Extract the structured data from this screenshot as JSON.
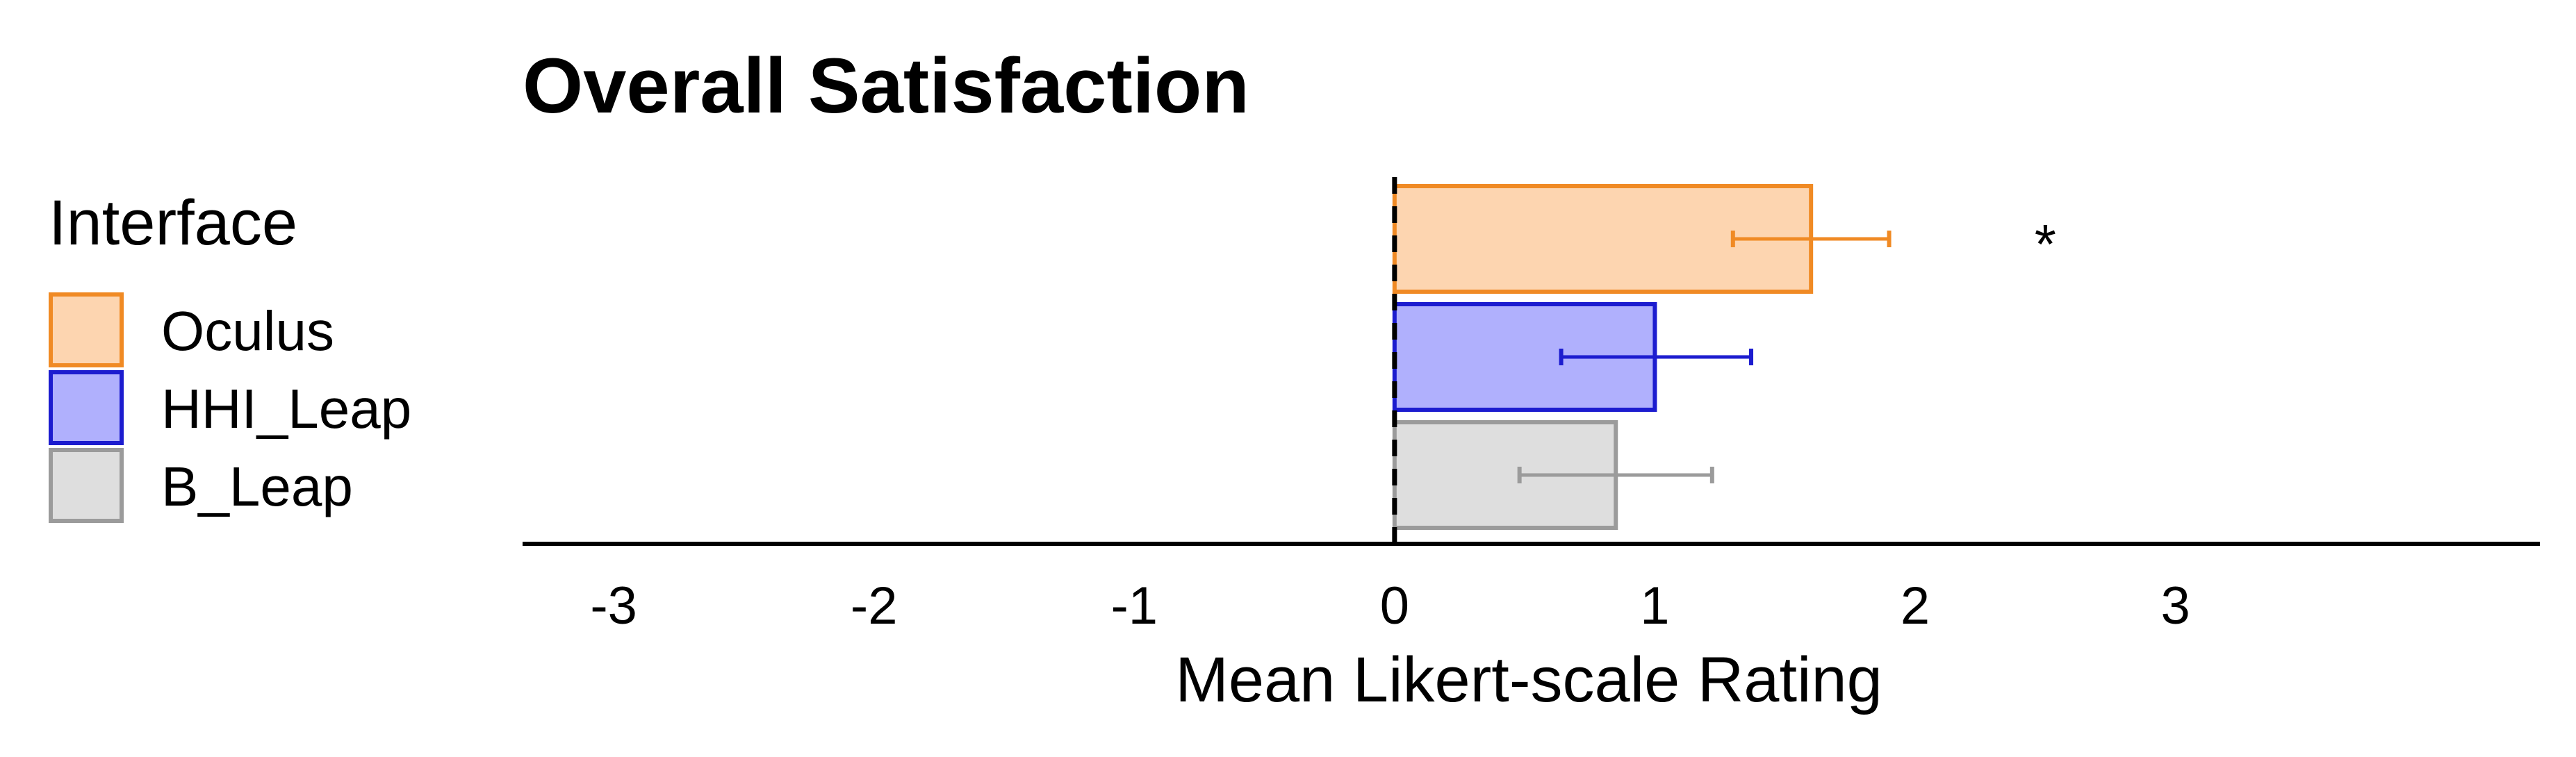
{
  "chart_data": {
    "type": "bar",
    "orientation": "horizontal",
    "title": "Overall Satisfaction",
    "xlabel": "Mean Likert-scale Rating",
    "xlim": [
      -3.35,
      4.4
    ],
    "xticks": [
      "-3",
      "-2",
      "-1",
      "0",
      "1",
      "2",
      "3"
    ],
    "xtick_values": [
      -3,
      -2,
      -1,
      0,
      1,
      2,
      3
    ],
    "legend": {
      "title": "Interface",
      "placement": "left"
    },
    "series": [
      {
        "name": "Oculus",
        "value": 1.6,
        "error_low": 1.3,
        "error_high": 1.9,
        "fill": "#fdd5b0",
        "stroke": "#f08a24",
        "annotation": "*"
      },
      {
        "name": "HHI_Leap",
        "value": 1.0,
        "error_low": 0.64,
        "error_high": 1.37,
        "fill": "#b0b0fd",
        "stroke": "#1c1ccf",
        "annotation": ""
      },
      {
        "name": "B_Leap",
        "value": 0.85,
        "error_low": 0.48,
        "error_high": 1.22,
        "fill": "#dedede",
        "stroke": "#9b9b9b",
        "annotation": ""
      }
    ],
    "reference_line": {
      "x": 0,
      "style": "dashed"
    }
  }
}
